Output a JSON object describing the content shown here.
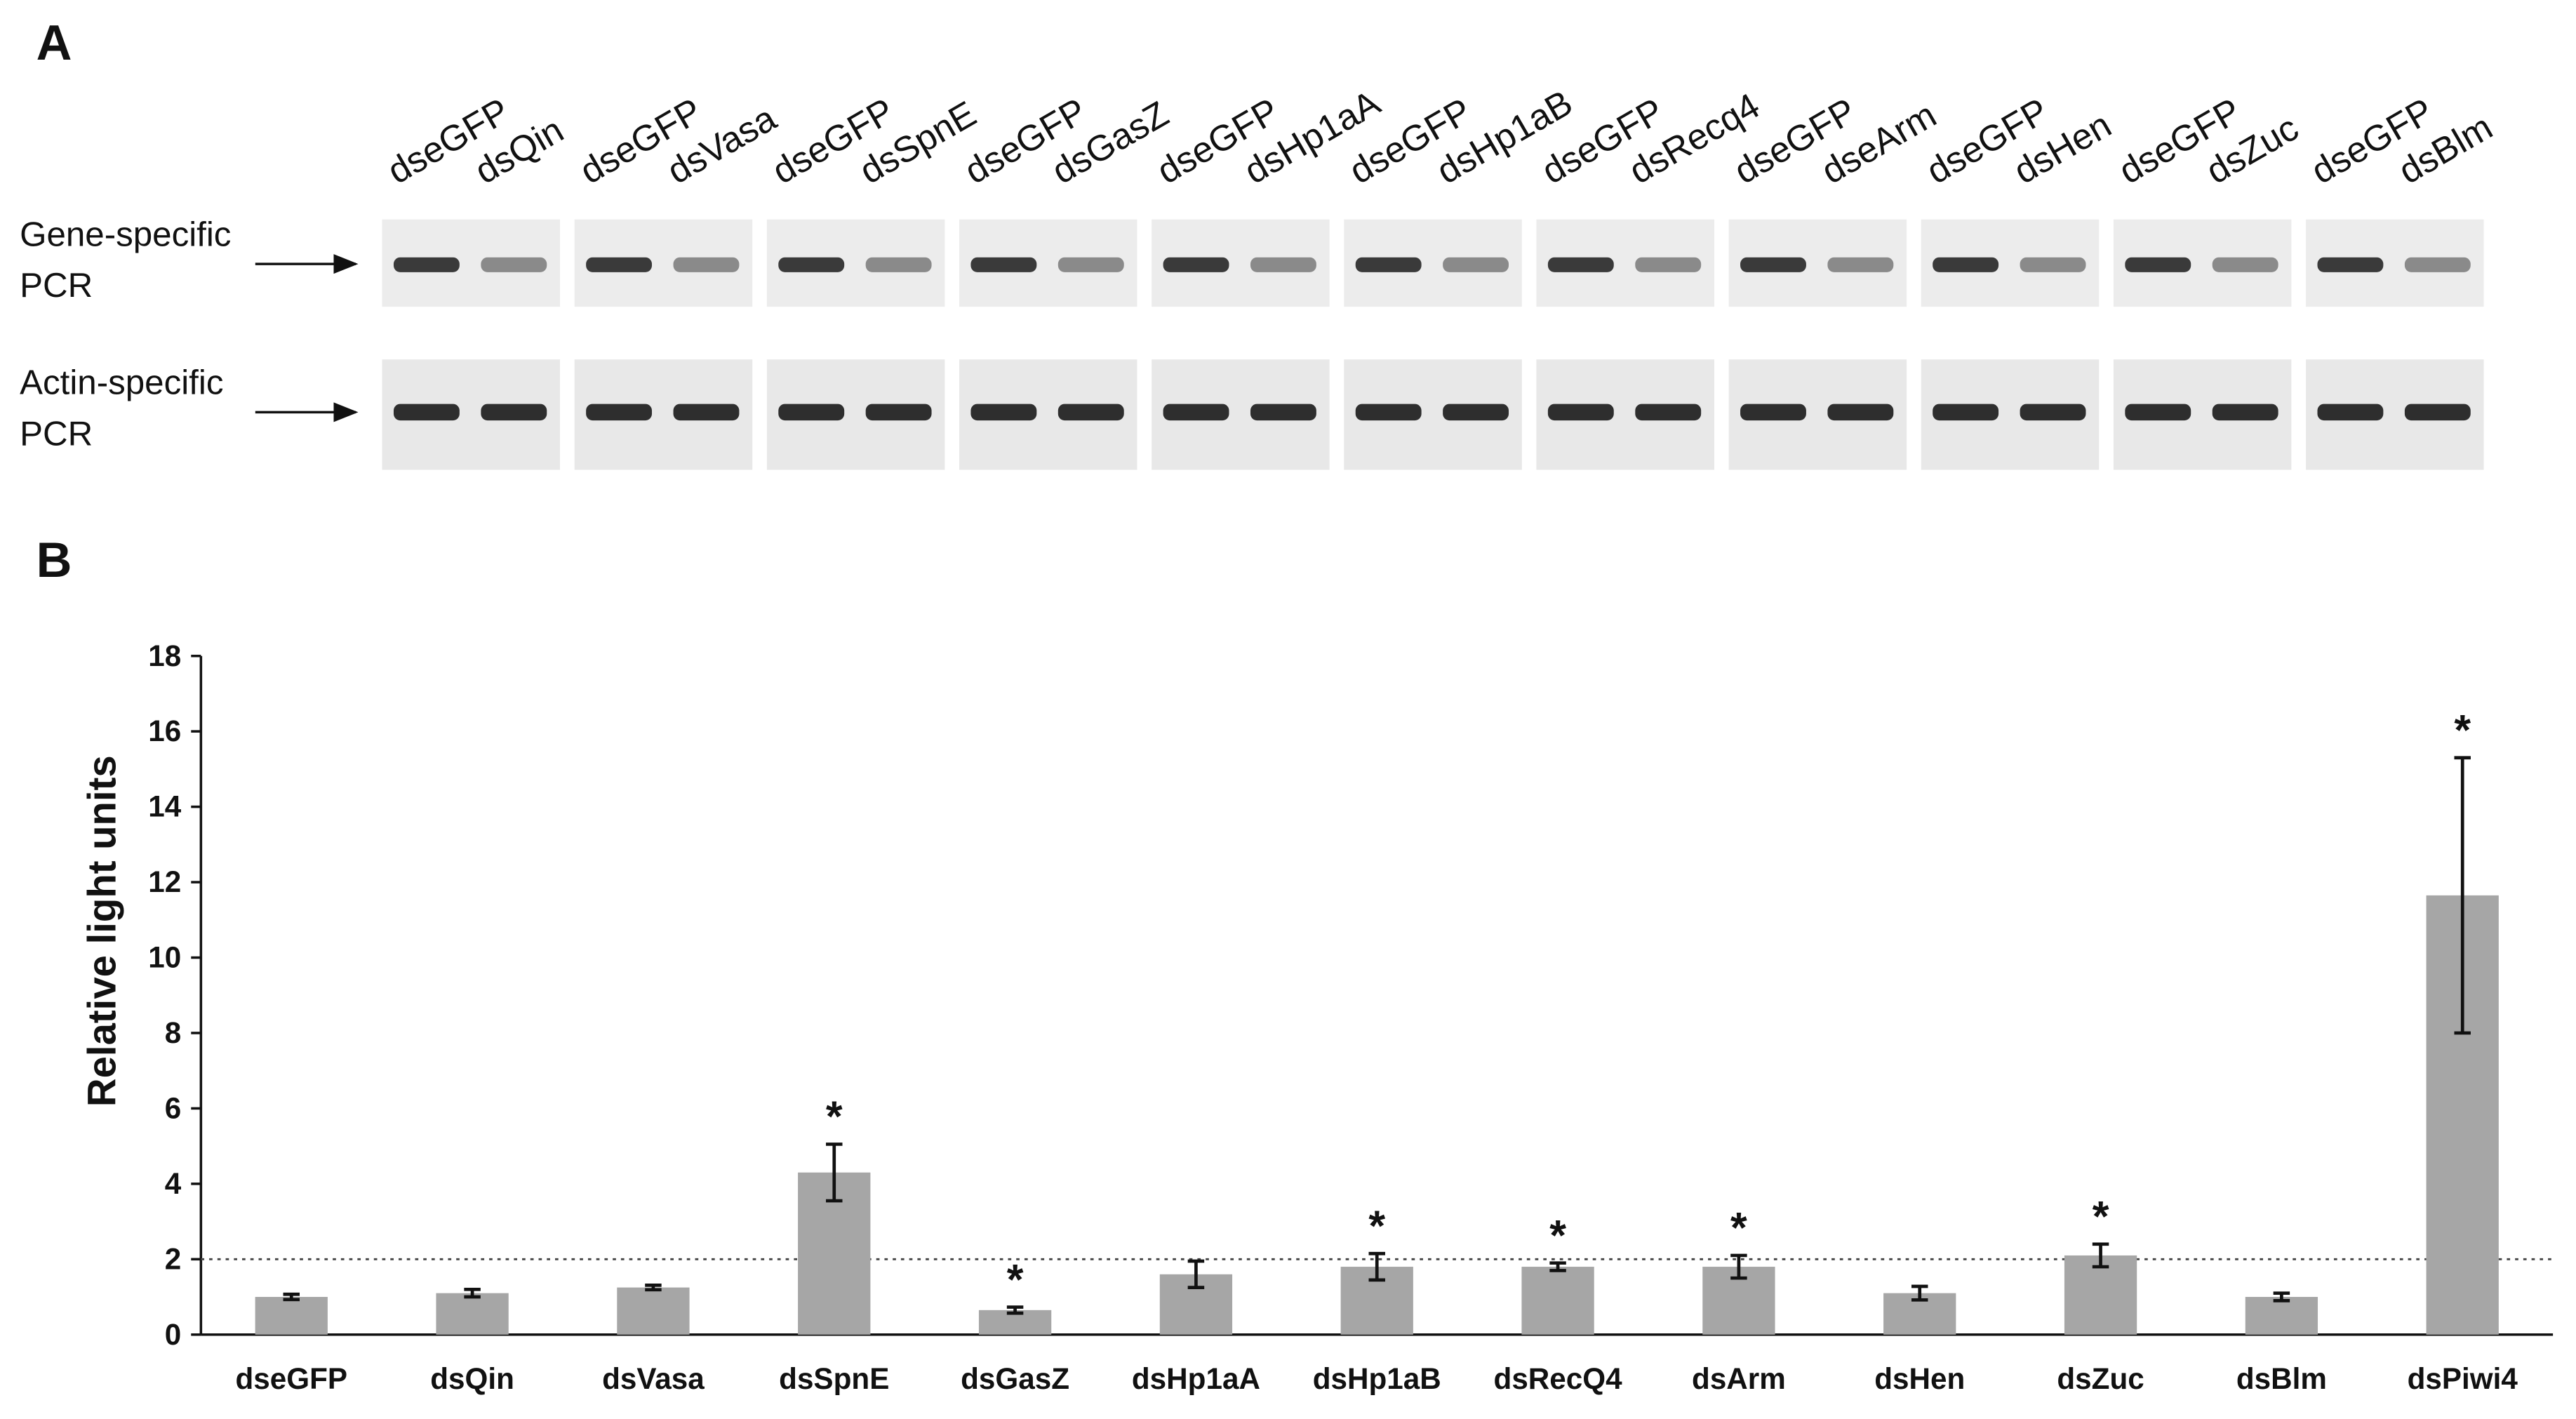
{
  "panel_labels": [
    "A",
    "B"
  ],
  "gel": {
    "lanes": [
      [
        "dseGFP",
        "dsQin"
      ],
      [
        "dseGFP",
        "dsVasa"
      ],
      [
        "dseGFP",
        "dsSpnE"
      ],
      [
        "dseGFP",
        "dsGasZ"
      ],
      [
        "dseGFP",
        "dsHp1aA"
      ],
      [
        "dseGFP",
        "dsHp1aB"
      ],
      [
        "dseGFP",
        "dsRecq4"
      ],
      [
        "dseGFP",
        "dseArm"
      ],
      [
        "dseGFP",
        "dsHen"
      ],
      [
        "dseGFP",
        "dsZuc"
      ],
      [
        "dseGFP",
        "dsBlm"
      ]
    ],
    "rows": [
      [
        "Gene-specific",
        "PCR"
      ],
      [
        "Actin-specific",
        "PCR"
      ]
    ]
  },
  "chart_data": {
    "type": "bar",
    "y_label": "Relative light units",
    "categories": [
      "dseGFP",
      "dsQin",
      "dsVasa",
      "dsSpnE",
      "dsGasZ",
      "dsHp1aA",
      "dsHp1aB",
      "dsRecQ4",
      "dsArm",
      "dsHen",
      "dsZuc",
      "dsBlm",
      "dsPiwi4"
    ],
    "values": [
      1.0,
      1.1,
      1.25,
      4.3,
      0.65,
      1.6,
      1.8,
      1.8,
      1.8,
      1.1,
      2.1,
      1.0,
      11.65
    ],
    "errors": [
      0.07,
      0.1,
      0.06,
      0.75,
      0.08,
      0.35,
      0.35,
      0.1,
      0.3,
      0.18,
      0.3,
      0.1,
      3.65
    ],
    "markers": [
      null,
      null,
      null,
      "*",
      "*",
      null,
      "*",
      "*",
      "*",
      null,
      "*",
      null,
      "*"
    ],
    "reference_line": 2,
    "color": "#a6a6a6",
    "ylim": [
      0,
      18
    ],
    "yticks": [
      0,
      2,
      4,
      6,
      8,
      10,
      12,
      14,
      16,
      18
    ]
  }
}
